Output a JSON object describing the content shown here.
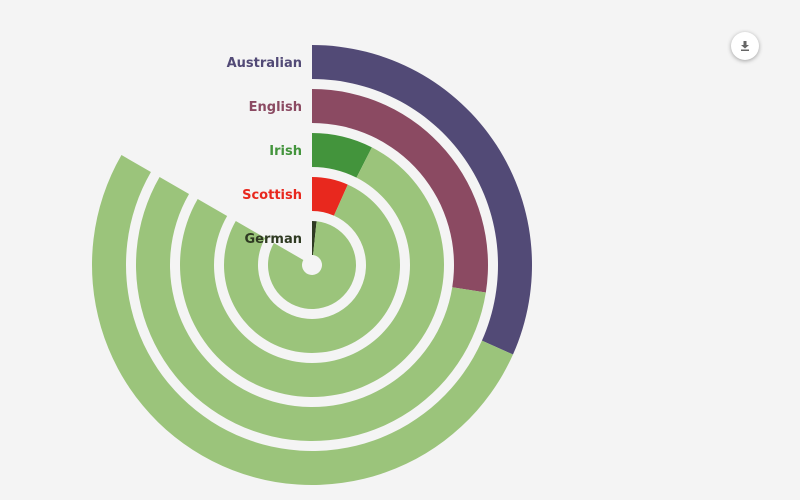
{
  "chart_data": {
    "type": "radial-bar",
    "max_value": 100,
    "series": [
      {
        "name": "Australian",
        "value": 38,
        "color": "#524a76"
      },
      {
        "name": "English",
        "value": 33,
        "color": "#8b4a62"
      },
      {
        "name": "Irish",
        "value": 9,
        "color": "#43943c"
      },
      {
        "name": "Scottish",
        "value": 8,
        "color": "#e8281e"
      },
      {
        "name": "German",
        "value": 2,
        "color": "#2f3a22"
      }
    ],
    "remainder_color": "#9bc47b"
  },
  "toolbar": {
    "download_icon": "download-icon"
  }
}
